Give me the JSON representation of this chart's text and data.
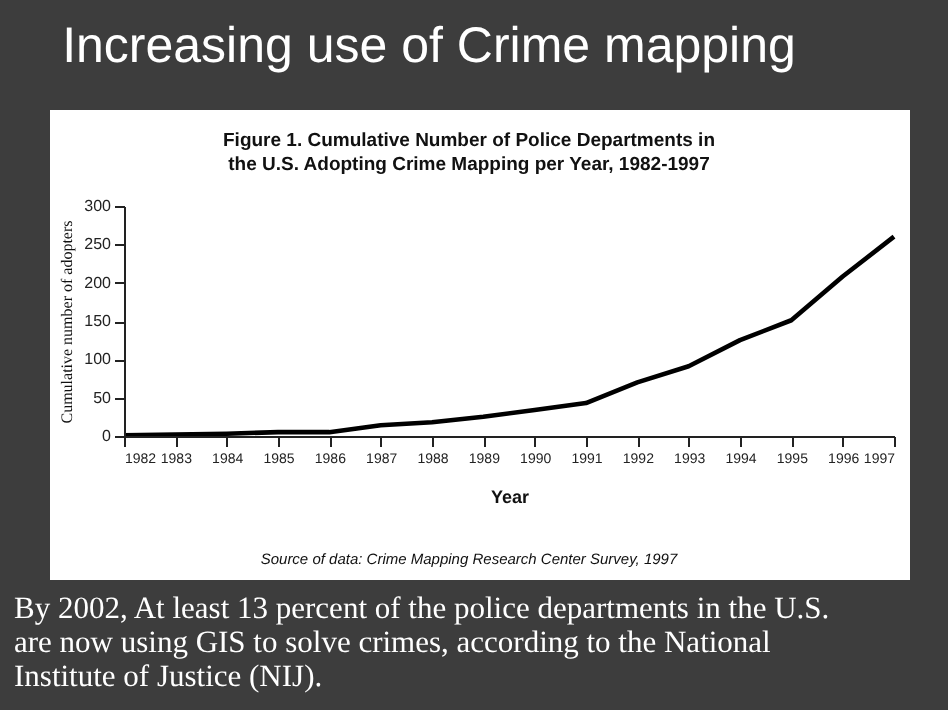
{
  "chart_data": {
    "type": "line",
    "title": "Increasing use of  Crime mapping",
    "subtitle": "Figure 1. Cumulative Number of Police Departments in the U.S. Adopting Crime Mapping per Year, 1982-1997",
    "xlabel": "Year",
    "ylabel": "Cumulative number of adopters",
    "x": [
      1982,
      1983,
      1984,
      1985,
      1986,
      1987,
      1988,
      1989,
      1990,
      1991,
      1992,
      1993,
      1994,
      1995,
      1996,
      1997
    ],
    "series": [
      {
        "color": "#000000",
        "values": [
          1,
          2,
          3,
          5,
          5,
          14,
          18,
          25,
          34,
          43,
          70,
          91,
          125,
          151,
          208,
          260
        ]
      }
    ],
    "xlim": [
      1982,
      1997
    ],
    "xticks": [
      1982,
      1983,
      1984,
      1985,
      1986,
      1987,
      1988,
      1989,
      1990,
      1991,
      1992,
      1993,
      1994,
      1995,
      1996,
      1997
    ],
    "ylim": [
      0,
      300
    ],
    "yticks": [
      0,
      50,
      100,
      150,
      200,
      250,
      300
    ],
    "annotations": [
      "Source of data: Crime Mapping Research Center Survey, 1997",
      "By 2002, At least 13 percent of the police departments in the U.S. are now using GIS to solve crimes, according to the National Institute of Justice (NIJ)."
    ]
  }
}
